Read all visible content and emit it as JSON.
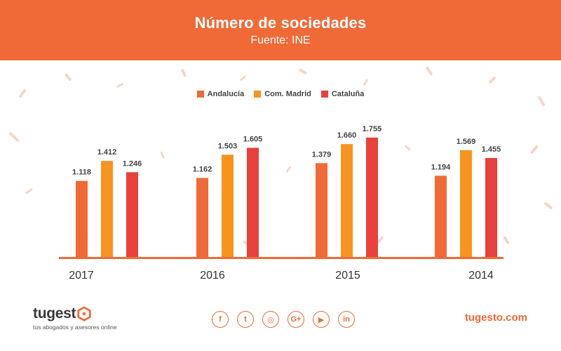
{
  "header": {
    "title": "Número de sociedades",
    "subtitle": "Fuente: INE"
  },
  "colors": {
    "brand": "#ef6a37",
    "andalucia": "#ef6a37",
    "madrid": "#f7941d",
    "cataluna": "#e8413c",
    "axis": "#ef6a37",
    "confetti": "#f4cdbd"
  },
  "chart_data": {
    "type": "bar",
    "title": "Número de sociedades",
    "subtitle": "Fuente: INE",
    "categories": [
      "2017",
      "2016",
      "2015",
      "2014"
    ],
    "series": [
      {
        "name": "Andalucía",
        "values": [
          1118,
          1162,
          1379,
          1194
        ],
        "labels": [
          "1.118",
          "1.162",
          "1.379",
          "1.194"
        ]
      },
      {
        "name": "Com. Madrid",
        "values": [
          1412,
          1503,
          1660,
          1569
        ],
        "labels": [
          "1.412",
          "1.503",
          "1.660",
          "1.569"
        ]
      },
      {
        "name": "Cataluña",
        "values": [
          1246,
          1605,
          1755,
          1455
        ],
        "labels": [
          "1.246",
          "1.605",
          "1.755",
          "1.455"
        ]
      }
    ],
    "xlabel": "",
    "ylabel": "",
    "ylim": [
      0,
      1850
    ],
    "grid": false,
    "legend": "top-center"
  },
  "footer": {
    "logo": "tugest",
    "tagline": "tus abogados y asesores online",
    "website": "tugesto.com",
    "social_icons": [
      {
        "name": "facebook-icon",
        "glyph": "f"
      },
      {
        "name": "twitter-icon",
        "glyph": "t"
      },
      {
        "name": "instagram-icon",
        "glyph": "◎"
      },
      {
        "name": "google-plus-icon",
        "glyph": "G+"
      },
      {
        "name": "youtube-icon",
        "glyph": "▶"
      },
      {
        "name": "linkedin-icon",
        "glyph": "in"
      }
    ]
  }
}
